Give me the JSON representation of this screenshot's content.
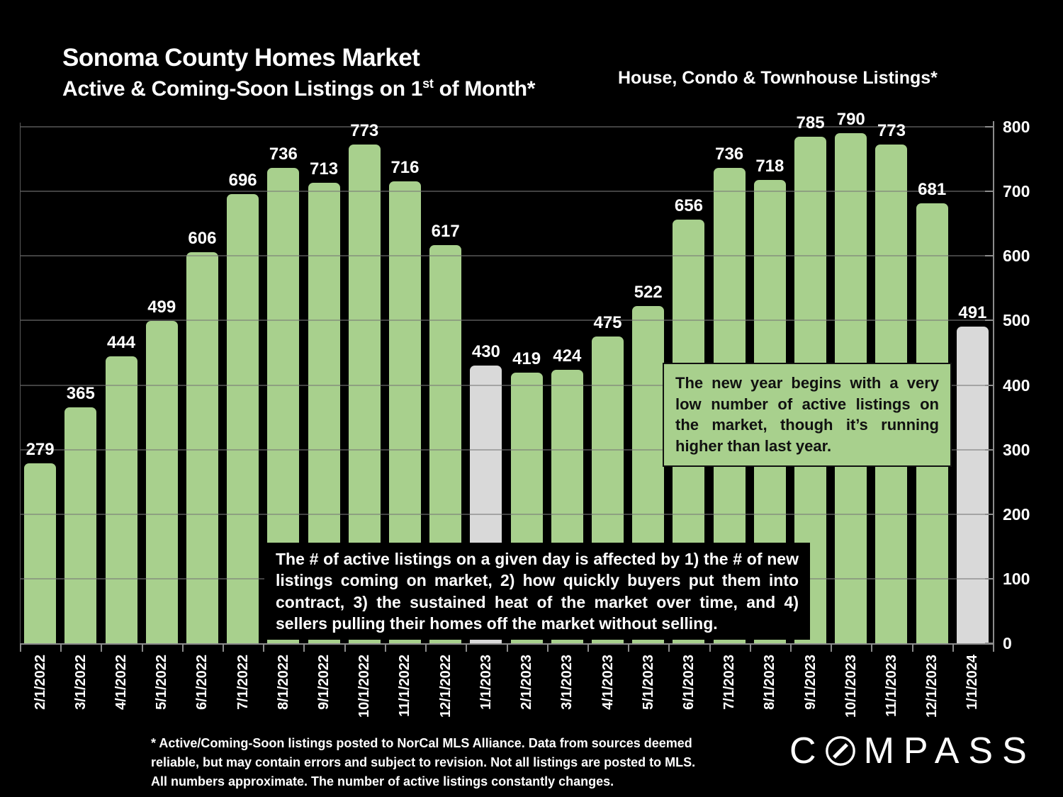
{
  "header": {
    "title": "Sonoma County Homes Market",
    "subtitle_prefix": "Active & Coming-Soon Listings on 1",
    "subtitle_sup": "st",
    "subtitle_suffix": " of Month*",
    "right_title": "House, Condo & Townhouse Listings*"
  },
  "chart_data": {
    "type": "bar",
    "title": "Sonoma County Homes Market — Active & Coming-Soon Listings on 1st of Month",
    "categories": [
      "2/1/2022",
      "3/1/2022",
      "4/1/2022",
      "5/1/2022",
      "6/1/2022",
      "7/1/2022",
      "8/1/2022",
      "9/1/2022",
      "10/1/2022",
      "11/1/2022",
      "12/1/2022",
      "1/1/2023",
      "2/1/2023",
      "3/1/2023",
      "4/1/2023",
      "5/1/2023",
      "6/1/2023",
      "7/1/2023",
      "8/1/2023",
      "9/1/2023",
      "10/1/2023",
      "11/1/2023",
      "12/1/2023",
      "1/1/2024"
    ],
    "values": [
      279,
      365,
      444,
      499,
      606,
      696,
      736,
      713,
      773,
      716,
      617,
      430,
      419,
      424,
      475,
      522,
      656,
      736,
      718,
      785,
      790,
      773,
      681,
      491
    ],
    "highlight_indices": [
      11,
      23
    ],
    "bar_color": "#a8d08d",
    "highlight_color": "#d9d9d9",
    "ylim": [
      0,
      800
    ],
    "ytick_interval": 100,
    "grid": true,
    "legend": false,
    "xlabel": "",
    "ylabel": ""
  },
  "annotations": {
    "green_box_text": "The new year begins with a very low number of active listings on the market, though it’s running higher than last year.",
    "black_box_text": "The # of active listings on a given day is affected by 1) the # of new listings coming on market, 2) how quickly buyers put them into contract, 3) the sustained heat of the market over time, and 4) sellers pulling their homes off the market without selling."
  },
  "footnote": "* Active/Coming-Soon listings posted to NorCal MLS Alliance.  Data from sources deemed\nreliable, but may contain errors and subject to revision.  Not all listings are posted to MLS.\nAll numbers approximate. The number of active listings constantly changes.",
  "logo": {
    "prefix": "C",
    "suffix": "MPASS"
  }
}
